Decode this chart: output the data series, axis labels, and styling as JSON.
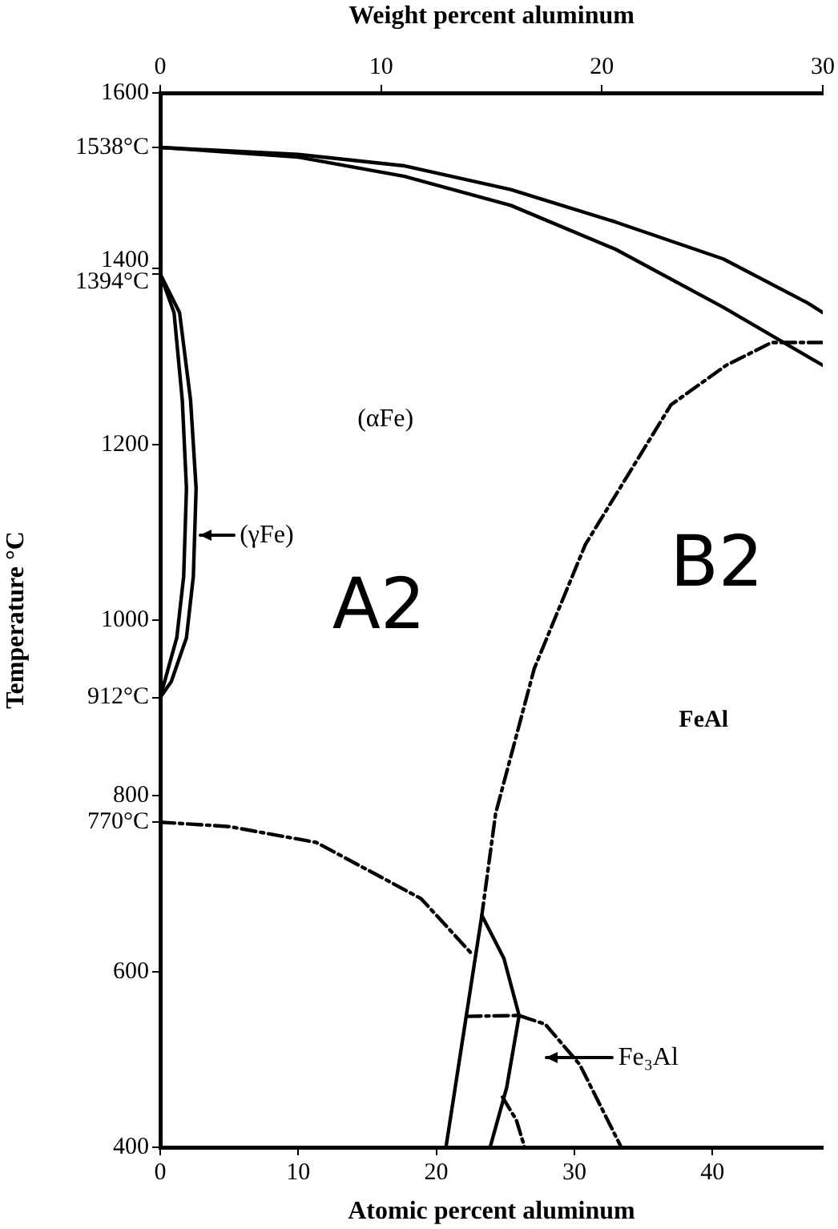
{
  "chart_data": {
    "type": "line",
    "xlabel": "Atomic percent aluminum",
    "x2label": "Weight percent aluminum",
    "ylabel": "Temperature °C",
    "xlim": [
      0,
      48
    ],
    "xticks": [
      0,
      10,
      20,
      30,
      40
    ],
    "x2lim": [
      0,
      30
    ],
    "x2ticks": [
      0,
      10,
      20,
      30
    ],
    "ylim": [
      400,
      1600
    ],
    "yticks": [
      400,
      600,
      {
        "value": 770,
        "label": "770°C"
      },
      800,
      {
        "value": 912,
        "label": "912°C"
      },
      1000,
      1200,
      {
        "value": 1394,
        "label": "1394°C"
      },
      1400,
      {
        "value": 1538,
        "label": "1538°C"
      },
      1600
    ],
    "grid": false,
    "legend": false,
    "marker": "none",
    "series": [
      {
        "type": "line",
        "color": "#000000",
        "line_style": "solid",
        "x": [
          0,
          10,
          17.7,
          25.4,
          33,
          40.8,
          46.9,
          48
        ],
        "values": [
          1538,
          1530,
          1517,
          1490,
          1453,
          1411,
          1361,
          1350
        ]
      },
      {
        "type": "line",
        "color": "#000000",
        "line_style": "solid",
        "x": [
          0,
          10,
          17.7,
          25.4,
          33,
          40.8,
          48
        ],
        "values": [
          1538,
          1527,
          1505,
          1472,
          1422,
          1356,
          1290
        ]
      },
      {
        "type": "line",
        "color": "#000000",
        "line_style": "solid",
        "x": [
          0,
          1.0,
          1.6,
          1.9,
          1.7,
          1.2,
          0
        ],
        "values": [
          1394,
          1350,
          1250,
          1150,
          1050,
          980,
          912
        ]
      },
      {
        "type": "line",
        "color": "#000000",
        "line_style": "solid",
        "x": [
          0,
          1.4,
          2.2,
          2.6,
          2.4,
          1.9,
          0.8,
          0
        ],
        "values": [
          1394,
          1350,
          1250,
          1150,
          1050,
          980,
          930,
          912
        ]
      },
      {
        "type": "line",
        "color": "#000000",
        "line_style": "dashed",
        "x": [
          48,
          44.3,
          41,
          37,
          30.8,
          27.1,
          24.3,
          23.3
        ],
        "values": [
          1316,
          1316,
          1290,
          1245,
          1086,
          945,
          780,
          664
        ]
      },
      {
        "type": "line",
        "color": "#000000",
        "line_style": "dashed",
        "x": [
          0,
          5,
          11.3,
          18.9,
          22.7
        ],
        "values": [
          770,
          765,
          747,
          683,
          618
        ]
      },
      {
        "type": "line",
        "color": "#000000",
        "line_style": "solid",
        "x": [
          20.7,
          23.3,
          24.9,
          26.0,
          25.1,
          23.9
        ],
        "values": [
          400,
          664,
          615,
          550,
          468,
          400
        ]
      },
      {
        "type": "line",
        "color": "#000000",
        "line_style": "dashed",
        "x": [
          22.2,
          26.0,
          27.9,
          30.4,
          33.4
        ],
        "values": [
          549,
          550,
          540,
          494,
          400
        ]
      },
      {
        "type": "line",
        "color": "#000000",
        "line_style": "dashed",
        "x": [
          24.8,
          25.8,
          26.4
        ],
        "values": [
          457,
          431,
          400
        ]
      }
    ],
    "annotations": [
      "(αFe)",
      "(γFe)",
      "A2",
      "B2",
      "FeAl",
      "Fe₃Al"
    ]
  }
}
